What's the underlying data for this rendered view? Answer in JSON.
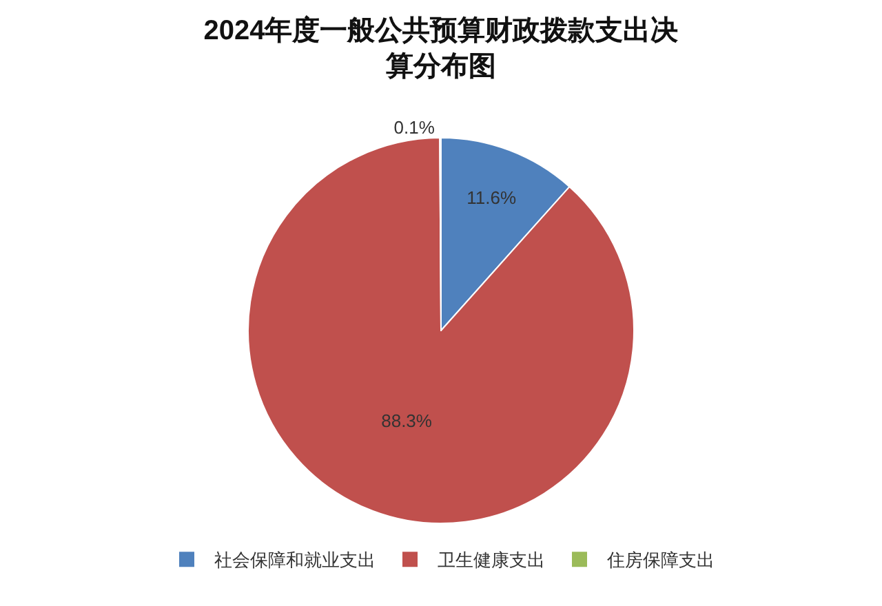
{
  "chart_data": {
    "type": "pie",
    "title": "2024年度一般公共预算财政拨款支出决算分布图",
    "categories": [
      "社会保障和就业支出",
      "卫生健康支出",
      "住房保障支出"
    ],
    "values": [
      11.6,
      88.3,
      0.1
    ],
    "colors": [
      "#4f81bd",
      "#c0504d",
      "#9bbb59"
    ],
    "value_labels": [
      "11.6%",
      "88.3%",
      "0.1%"
    ],
    "legend": "bottom"
  }
}
